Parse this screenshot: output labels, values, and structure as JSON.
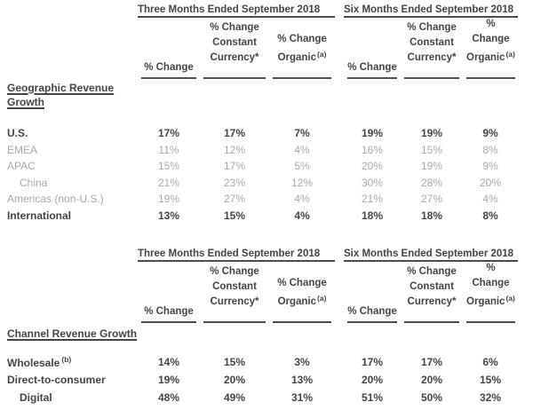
{
  "colors": {
    "background": "#ffffff",
    "text_dark": "#454547",
    "text_light": "#a9a9a9",
    "rule": "#4c4c4e"
  },
  "header": {
    "group_three_months": "Three Months Ended September 2018",
    "group_six_months": "Six Months Ended September 2018",
    "col_pct_change": "% Change",
    "col_constant_line1": "% Change",
    "col_constant_line2": "Constant",
    "col_constant_line3": "Currency*",
    "col_organic_line1": "% Change",
    "col_organic_line2": "Organic",
    "col_organic_sup": "(a)"
  },
  "geographic": {
    "section_label": "Geographic Revenue Growth",
    "rows": [
      {
        "label": "U.S.",
        "values": [
          "17%",
          "17%",
          "7%",
          "19%",
          "19%",
          "9%"
        ]
      },
      {
        "label": "EMEA",
        "values": [
          "11%",
          "12%",
          "4%",
          "16%",
          "15%",
          "8%"
        ]
      },
      {
        "label": "APAC",
        "values": [
          "15%",
          "17%",
          "5%",
          "20%",
          "19%",
          "9%"
        ]
      },
      {
        "label": "China",
        "values": [
          "21%",
          "23%",
          "12%",
          "30%",
          "28%",
          "20%"
        ]
      },
      {
        "label": "Americas (non-U.S.)",
        "values": [
          "19%",
          "27%",
          "4%",
          "21%",
          "27%",
          "4%"
        ]
      },
      {
        "label": "International",
        "values": [
          "13%",
          "15%",
          "4%",
          "18%",
          "18%",
          "8%"
        ]
      }
    ]
  },
  "channel": {
    "section_label": "Channel Revenue Growth",
    "rows": [
      {
        "label": "Wholesale",
        "label_sup": "(b)",
        "values": [
          "14%",
          "15%",
          "3%",
          "17%",
          "17%",
          "6%"
        ]
      },
      {
        "label": "Direct-to-consumer",
        "values": [
          "19%",
          "20%",
          "13%",
          "20%",
          "20%",
          "15%"
        ]
      },
      {
        "label": "Digital",
        "values": [
          "48%",
          "49%",
          "31%",
          "51%",
          "50%",
          "32%"
        ]
      }
    ]
  }
}
